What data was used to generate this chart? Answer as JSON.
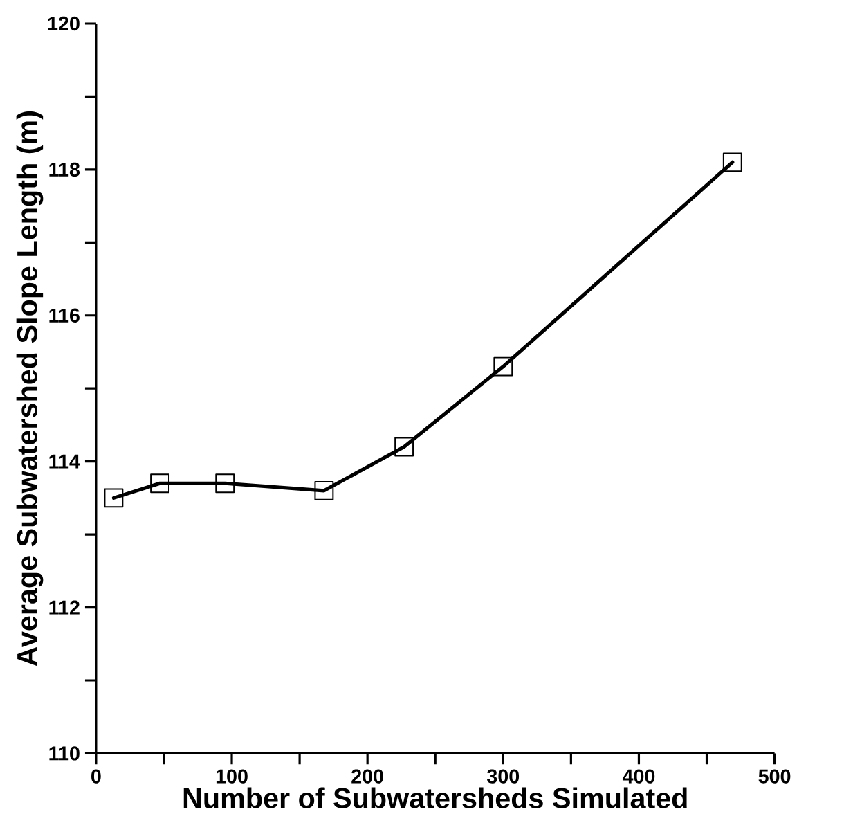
{
  "chart_data": {
    "type": "line",
    "xlabel": "Number of Subwatersheds Simulated",
    "ylabel": "Average Subwatershed Slope Length (m)",
    "x": [
      13,
      47,
      95,
      168,
      227,
      300,
      469
    ],
    "series": [
      {
        "color": "#000000",
        "values": [
          113.5,
          113.7,
          113.7,
          113.6,
          114.2,
          115.3,
          118.1
        ]
      }
    ],
    "xlim": [
      0,
      500
    ],
    "ylim": [
      110,
      120
    ],
    "xticks": [
      0,
      {
        "value": 50,
        "label": null
      },
      100,
      {
        "value": 150,
        "label": null
      },
      200,
      {
        "value": 250,
        "label": null
      },
      300,
      {
        "value": 350,
        "label": null
      },
      400,
      {
        "value": 450,
        "label": null
      },
      500
    ],
    "yticks": [
      110,
      {
        "value": 111,
        "label": null
      },
      112,
      {
        "value": 113,
        "label": null
      },
      114,
      {
        "value": 115,
        "label": null
      },
      116,
      {
        "value": 117,
        "label": null
      },
      118,
      {
        "value": 119,
        "label": null
      },
      120
    ],
    "grid": false,
    "legend": false,
    "marker": "square",
    "line_style": "solid"
  }
}
